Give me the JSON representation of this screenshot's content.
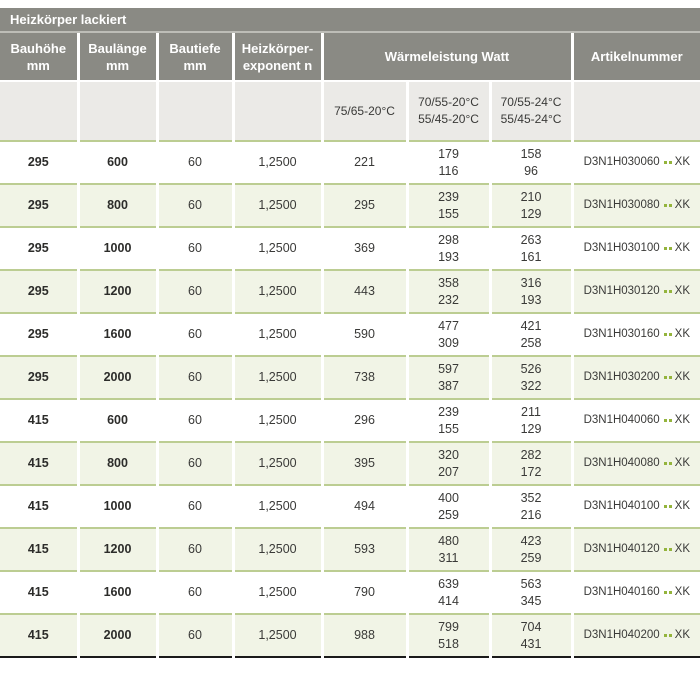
{
  "header": {
    "title": "Heizkörper lackiert",
    "columns": [
      {
        "label": "Bauhöhe\nmm"
      },
      {
        "label": "Baulänge\nmm"
      },
      {
        "label": "Bautiefe\nmm"
      },
      {
        "label": "Heizkörper-\nexponent n"
      },
      {
        "label": "Wärmeleistung Watt"
      },
      {
        "label": "Artikelnummer"
      }
    ],
    "subcolumns": [
      "75/65-20°C",
      "70/55-20°C\n55/45-20°C",
      "70/55-24°C\n55/45-24°C"
    ]
  },
  "rows": [
    {
      "bauhoehe": "295",
      "baulaenge": "600",
      "bautiefe": "60",
      "exponent": "1,2500",
      "watt_75_65": "221",
      "watt_70_55_20": [
        "179",
        "116"
      ],
      "watt_70_55_24": [
        "158",
        "96"
      ],
      "artikel": "D3N1H030060",
      "artikel_suffix": "XK"
    },
    {
      "bauhoehe": "295",
      "baulaenge": "800",
      "bautiefe": "60",
      "exponent": "1,2500",
      "watt_75_65": "295",
      "watt_70_55_20": [
        "239",
        "155"
      ],
      "watt_70_55_24": [
        "210",
        "129"
      ],
      "artikel": "D3N1H030080",
      "artikel_suffix": "XK"
    },
    {
      "bauhoehe": "295",
      "baulaenge": "1000",
      "bautiefe": "60",
      "exponent": "1,2500",
      "watt_75_65": "369",
      "watt_70_55_20": [
        "298",
        "193"
      ],
      "watt_70_55_24": [
        "263",
        "161"
      ],
      "artikel": "D3N1H030100",
      "artikel_suffix": "XK"
    },
    {
      "bauhoehe": "295",
      "baulaenge": "1200",
      "bautiefe": "60",
      "exponent": "1,2500",
      "watt_75_65": "443",
      "watt_70_55_20": [
        "358",
        "232"
      ],
      "watt_70_55_24": [
        "316",
        "193"
      ],
      "artikel": "D3N1H030120",
      "artikel_suffix": "XK"
    },
    {
      "bauhoehe": "295",
      "baulaenge": "1600",
      "bautiefe": "60",
      "exponent": "1,2500",
      "watt_75_65": "590",
      "watt_70_55_20": [
        "477",
        "309"
      ],
      "watt_70_55_24": [
        "421",
        "258"
      ],
      "artikel": "D3N1H030160",
      "artikel_suffix": "XK"
    },
    {
      "bauhoehe": "295",
      "baulaenge": "2000",
      "bautiefe": "60",
      "exponent": "1,2500",
      "watt_75_65": "738",
      "watt_70_55_20": [
        "597",
        "387"
      ],
      "watt_70_55_24": [
        "526",
        "322"
      ],
      "artikel": "D3N1H030200",
      "artikel_suffix": "XK"
    },
    {
      "bauhoehe": "415",
      "baulaenge": "600",
      "bautiefe": "60",
      "exponent": "1,2500",
      "watt_75_65": "296",
      "watt_70_55_20": [
        "239",
        "155"
      ],
      "watt_70_55_24": [
        "211",
        "129"
      ],
      "artikel": "D3N1H040060",
      "artikel_suffix": "XK"
    },
    {
      "bauhoehe": "415",
      "baulaenge": "800",
      "bautiefe": "60",
      "exponent": "1,2500",
      "watt_75_65": "395",
      "watt_70_55_20": [
        "320",
        "207"
      ],
      "watt_70_55_24": [
        "282",
        "172"
      ],
      "artikel": "D3N1H040080",
      "artikel_suffix": "XK"
    },
    {
      "bauhoehe": "415",
      "baulaenge": "1000",
      "bautiefe": "60",
      "exponent": "1,2500",
      "watt_75_65": "494",
      "watt_70_55_20": [
        "400",
        "259"
      ],
      "watt_70_55_24": [
        "352",
        "216"
      ],
      "artikel": "D3N1H040100",
      "artikel_suffix": "XK"
    },
    {
      "bauhoehe": "415",
      "baulaenge": "1200",
      "bautiefe": "60",
      "exponent": "1,2500",
      "watt_75_65": "593",
      "watt_70_55_20": [
        "480",
        "311"
      ],
      "watt_70_55_24": [
        "423",
        "259"
      ],
      "artikel": "D3N1H040120",
      "artikel_suffix": "XK"
    },
    {
      "bauhoehe": "415",
      "baulaenge": "1600",
      "bautiefe": "60",
      "exponent": "1,2500",
      "watt_75_65": "790",
      "watt_70_55_20": [
        "639",
        "414"
      ],
      "watt_70_55_24": [
        "563",
        "345"
      ],
      "artikel": "D3N1H040160",
      "artikel_suffix": "XK"
    },
    {
      "bauhoehe": "415",
      "baulaenge": "2000",
      "bautiefe": "60",
      "exponent": "1,2500",
      "watt_75_65": "988",
      "watt_70_55_20": [
        "799",
        "518"
      ],
      "watt_70_55_24": [
        "704",
        "431"
      ],
      "artikel": "D3N1H040200",
      "artikel_suffix": "XK"
    }
  ],
  "icons": {
    "artikel_separator": "two-green-squares"
  },
  "colors": {
    "header_gray": "#8a8a84",
    "subheader_gray": "#ebeae7",
    "row_tint_green": "#f1f4e6",
    "separator_green": "#bccd92",
    "dot_green": "#94b43c",
    "text_dark": "#3a3a38",
    "bottom_line": "#1a1a1a",
    "title_divider": "#bdbdb7"
  }
}
